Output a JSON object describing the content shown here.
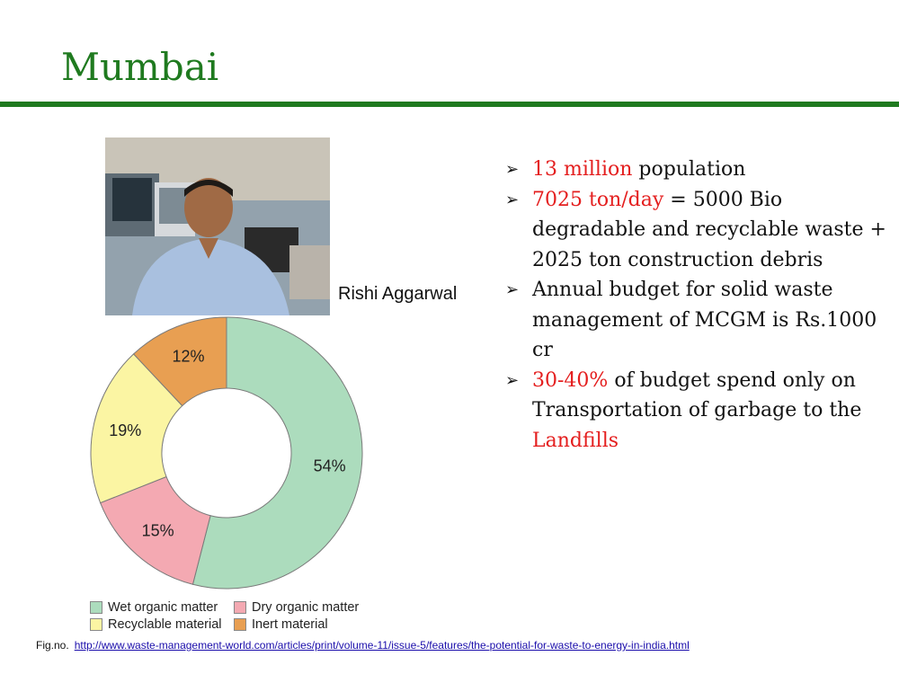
{
  "title": "Mumbai",
  "photo": {
    "caption": "Rishi Aggarwal"
  },
  "bullets": [
    {
      "parts": [
        {
          "text": "13 million",
          "color": "#e41e1e"
        },
        {
          "text": " population"
        }
      ]
    },
    {
      "parts": [
        {
          "text": "7025 ton/day",
          "color": "#e41e1e"
        },
        {
          "text": " = 5000 Bio degradable and recyclable waste + 2025 ton construction debris"
        }
      ]
    },
    {
      "parts": [
        {
          "text": "Annual budget for solid waste management of  MCGM is Rs.1000 cr"
        }
      ]
    },
    {
      "parts": [
        {
          "text": "30-40%",
          "color": "#e41e1e"
        },
        {
          "text": "  of budget spend only on Transportation of garbage to the "
        },
        {
          "text": "Landfills",
          "color": "#e41e1e"
        }
      ]
    }
  ],
  "colors": {
    "title": "#1f7a1f",
    "highlight": "#e41e1e",
    "link": "#1a0dab"
  },
  "chart_data": {
    "type": "pie",
    "donut": true,
    "categories": [
      "Wet organic matter",
      "Dry organic matter",
      "Recyclable material",
      "Inert material"
    ],
    "values": [
      54,
      15,
      19,
      12
    ],
    "labels": [
      "54%",
      "15%",
      "19%",
      "12%"
    ],
    "colors": [
      "#acdcbd",
      "#f4a9b2",
      "#fbf5a3",
      "#e89f52"
    ],
    "legend_position": "bottom"
  },
  "footer": {
    "label": "Fig.no.",
    "link": "http://www.waste-management-world.com/articles/print/volume-11/issue-5/features/the-potential-for-waste-to-energy-in-india.html"
  }
}
